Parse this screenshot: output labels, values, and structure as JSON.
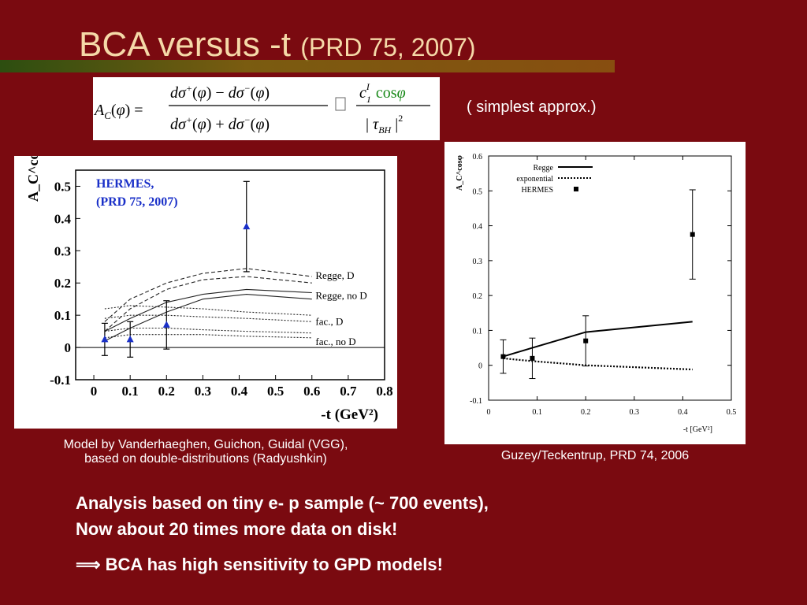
{
  "slide": {
    "title_main": "BCA versus -t",
    "title_ref": "(PRD 75, 2007)",
    "approx_note": "( simplest approx.)",
    "equation": {
      "lhs": "A_C(φ) =",
      "num": "dσ⁺(φ) − dσ⁻(φ)",
      "den": "dσ⁺(φ) + dσ⁻(φ)",
      "rhs_num": "c₁ᴵ cosφ",
      "rhs_den": "| τ_BH |²"
    },
    "caption_left_1": "Model by Vanderhaeghen, Guichon, Guidal (VGG),",
    "caption_left_2": "based on double-distributions (Radyushkin)",
    "caption_right": "Guzey/Teckentrup, PRD 74, 2006",
    "bullet_1": "Analysis based on tiny e- p sample (~ 700 events),",
    "bullet_2": "Now about 20 times more data on disk!",
    "bullet_3": "BCA has high sensitivity to GPD models!",
    "colors": {
      "background": "#7a0a10",
      "title": "#f5d9a8",
      "hermes_text": "#1a30c8",
      "equation_cos": "#1a8a1a"
    }
  },
  "chart_data": [
    {
      "type": "line",
      "annotation": [
        "HERMES,",
        "(PRD 75, 2007)"
      ],
      "ylabel": "A_C^cosφ",
      "xlabel": "-t (GeV²)",
      "xlim": [
        -0.05,
        0.8
      ],
      "ylim": [
        -0.1,
        0.55
      ],
      "xticks": [
        "0",
        "0.1",
        "0.2",
        "0.3",
        "0.4",
        "0.5",
        "0.6",
        "0.7",
        "0.8"
      ],
      "yticks": [
        "-0.1",
        "0",
        "0.1",
        "0.2",
        "0.3",
        "0.4",
        "0.5"
      ],
      "curve_labels": [
        "Regge, D",
        "Regge, no D",
        "fac., D",
        "fac., no D"
      ],
      "data": {
        "x": [
          0.03,
          0.1,
          0.2,
          0.42
        ],
        "y": [
          0.025,
          0.025,
          0.07,
          0.375
        ],
        "err": [
          0.05,
          0.055,
          0.075,
          0.14
        ]
      },
      "bands": [
        {
          "name": "Regge, D",
          "style": "dashed",
          "curves": [
            [
              [
                0.03,
                0.05
              ],
              [
                0.1,
                0.12
              ],
              [
                0.2,
                0.18
              ],
              [
                0.3,
                0.21
              ],
              [
                0.42,
                0.22
              ],
              [
                0.6,
                0.2
              ]
            ],
            [
              [
                0.03,
                0.08
              ],
              [
                0.1,
                0.15
              ],
              [
                0.2,
                0.2
              ],
              [
                0.3,
                0.23
              ],
              [
                0.42,
                0.245
              ],
              [
                0.6,
                0.22
              ]
            ]
          ]
        },
        {
          "name": "Regge, no D",
          "style": "solid",
          "curves": [
            [
              [
                0.03,
                0.02
              ],
              [
                0.1,
                0.06
              ],
              [
                0.2,
                0.11
              ],
              [
                0.3,
                0.15
              ],
              [
                0.42,
                0.165
              ],
              [
                0.6,
                0.15
              ]
            ],
            [
              [
                0.03,
                0.05
              ],
              [
                0.1,
                0.09
              ],
              [
                0.2,
                0.14
              ],
              [
                0.3,
                0.165
              ],
              [
                0.42,
                0.18
              ],
              [
                0.6,
                0.17
              ]
            ]
          ]
        },
        {
          "name": "fac., D",
          "style": "dotted",
          "curves": [
            [
              [
                0.03,
                0.09
              ],
              [
                0.1,
                0.1
              ],
              [
                0.2,
                0.1
              ],
              [
                0.3,
                0.095
              ],
              [
                0.42,
                0.09
              ],
              [
                0.6,
                0.08
              ]
            ],
            [
              [
                0.03,
                0.12
              ],
              [
                0.1,
                0.13
              ],
              [
                0.2,
                0.125
              ],
              [
                0.3,
                0.12
              ],
              [
                0.42,
                0.11
              ],
              [
                0.6,
                0.1
              ]
            ]
          ]
        },
        {
          "name": "fac., no D",
          "style": "dotted",
          "curves": [
            [
              [
                0.03,
                0.03
              ],
              [
                0.1,
                0.04
              ],
              [
                0.2,
                0.04
              ],
              [
                0.3,
                0.04
              ],
              [
                0.42,
                0.035
              ],
              [
                0.6,
                0.03
              ]
            ],
            [
              [
                0.03,
                0.05
              ],
              [
                0.1,
                0.06
              ],
              [
                0.2,
                0.06
              ],
              [
                0.3,
                0.055
              ],
              [
                0.42,
                0.05
              ],
              [
                0.6,
                0.045
              ]
            ]
          ]
        }
      ]
    },
    {
      "type": "line",
      "ylabel": "A_C^cosφ",
      "xlabel": "-t [GeV²]",
      "xlim": [
        0,
        0.5
      ],
      "ylim": [
        -0.1,
        0.6
      ],
      "xticks": [
        "0",
        "0.1",
        "0.2",
        "0.3",
        "0.4",
        "0.5"
      ],
      "yticks": [
        "-0.1",
        "0",
        "0.1",
        "0.2",
        "0.3",
        "0.4",
        "0.5",
        "0.6"
      ],
      "legend": [
        "Regge",
        "exponential",
        "HERMES"
      ],
      "legend_position": "top-left",
      "series": [
        {
          "name": "Regge",
          "style": "solid",
          "x": [
            0.03,
            0.09,
            0.2,
            0.42
          ],
          "y": [
            0.025,
            0.05,
            0.095,
            0.125
          ]
        },
        {
          "name": "exponential",
          "style": "dotted",
          "x": [
            0.03,
            0.09,
            0.2,
            0.42
          ],
          "y": [
            0.02,
            0.012,
            0.0,
            -0.012
          ]
        }
      ],
      "data": {
        "name": "HERMES",
        "x": [
          0.03,
          0.09,
          0.2,
          0.42
        ],
        "y": [
          0.025,
          0.02,
          0.07,
          0.375
        ],
        "err": [
          0.048,
          0.058,
          0.072,
          0.128
        ]
      }
    }
  ]
}
